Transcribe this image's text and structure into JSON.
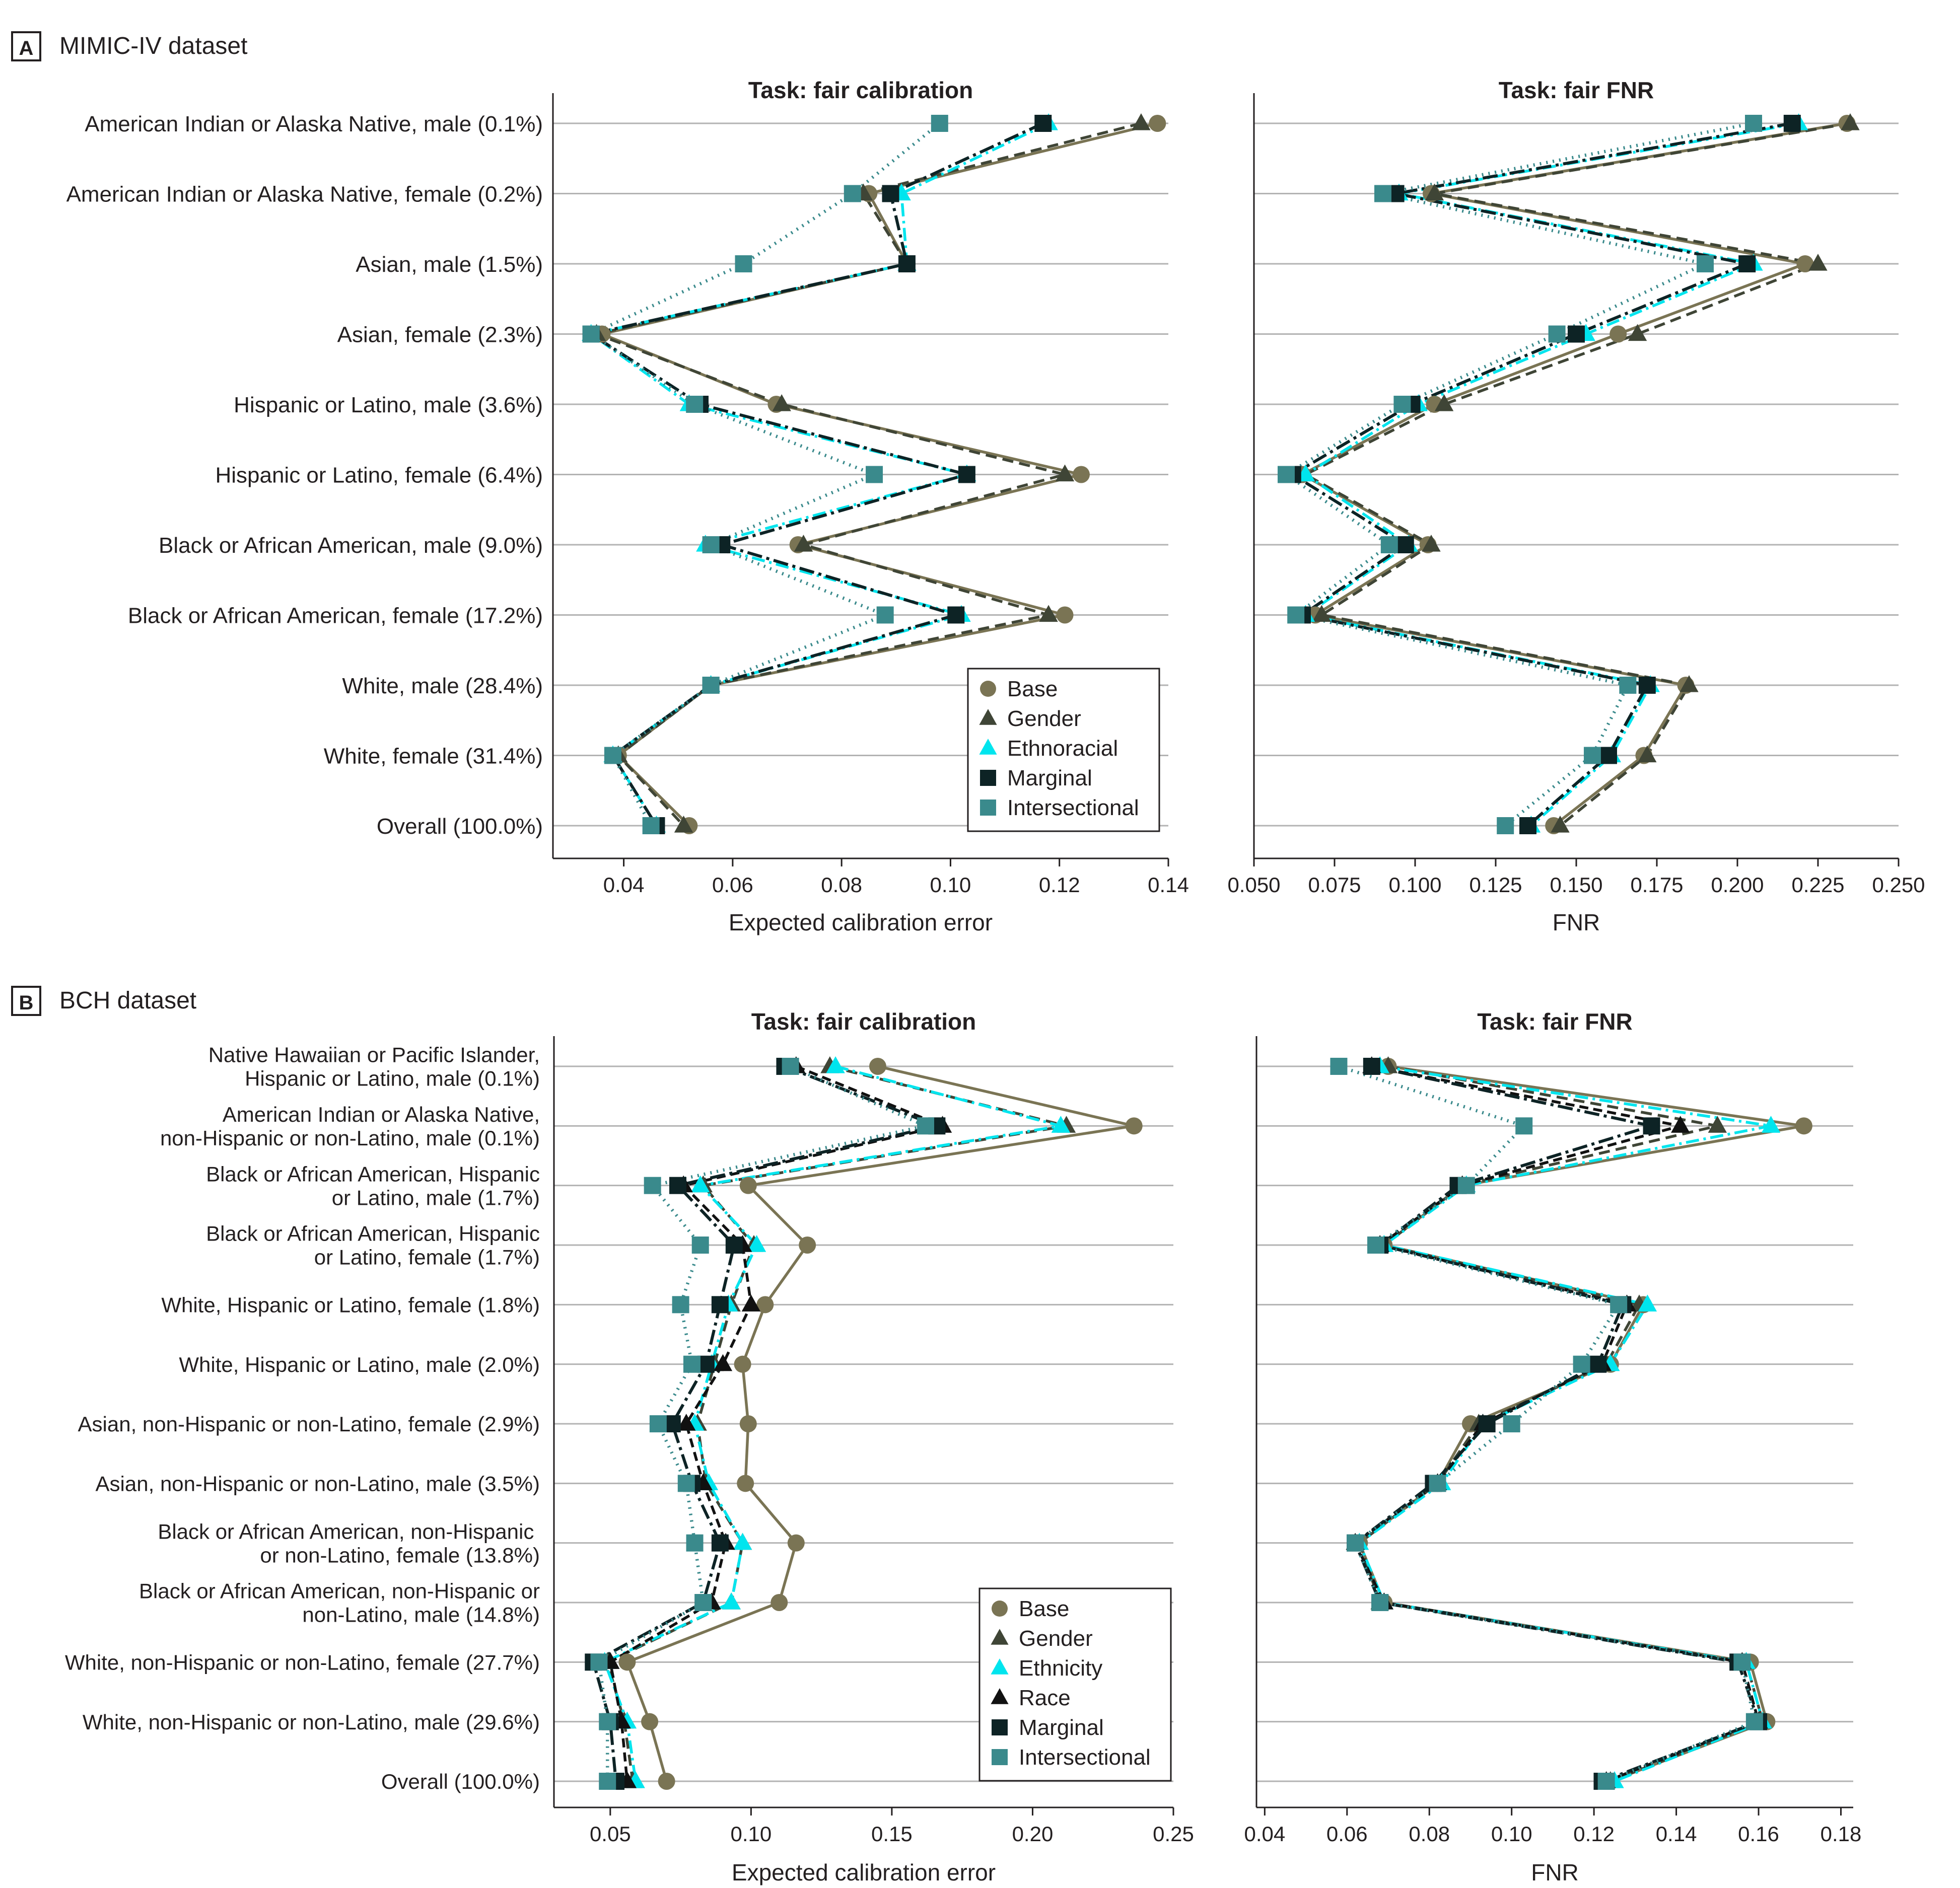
{
  "panels": [
    {
      "tag": "A",
      "title": "MIMIC-IV dataset"
    },
    {
      "tag": "B",
      "title": "BCH dataset"
    }
  ],
  "colors": {
    "Base": "#7a7454",
    "Gender": "#3f4536",
    "Ethnoracial": "#00e5ee",
    "Ethnicity": "#00e5ee",
    "Race": "#111111",
    "Marginal": "#0d2325",
    "Intersectional": "#3a8a8c",
    "error_bar": "#e8542a",
    "gridline": "#b3b3b3",
    "axis": "#231f20"
  },
  "chart_data": [
    {
      "id": "A-calibration",
      "type": "line",
      "title": "Task: fair calibration",
      "xlabel": "Expected calibration error",
      "ylabel": "",
      "xlim": [
        0.027,
        0.14
      ],
      "xticks": [
        0.04,
        0.06,
        0.08,
        0.1,
        0.12,
        0.14
      ],
      "xtick_labels": [
        "0.04",
        "0.06",
        "0.08",
        "0.10",
        "0.12",
        "0.14"
      ],
      "grid": true,
      "legend": "lower-right",
      "legend_entries": [
        "Base",
        "Gender",
        "Ethnoracial",
        "Marginal",
        "Intersectional"
      ],
      "categories": [
        [
          "American Indian or Alaska Native, male (0.1%)"
        ],
        [
          "American Indian or Alaska Native, female (0.2%)"
        ],
        [
          "Asian, male (1.5%)"
        ],
        [
          "Asian, female (2.3%)"
        ],
        [
          "Hispanic or Latino, male (3.6%)"
        ],
        [
          "Hispanic or Latino, female (6.4%)"
        ],
        [
          "Black or African American, male (9.0%)"
        ],
        [
          "Black or African American, female (17.2%)"
        ],
        [
          "White, male (28.4%)"
        ],
        [
          "White, female (31.4%)"
        ],
        [
          "Overall (100.0%)"
        ]
      ],
      "series": [
        {
          "name": "Base",
          "values": [
            0.138,
            0.085,
            0.092,
            0.036,
            0.068,
            0.124,
            0.072,
            0.121,
            0.056,
            0.039,
            0.052
          ]
        },
        {
          "name": "Gender",
          "values": [
            0.135,
            0.084,
            0.092,
            0.035,
            0.069,
            0.121,
            0.073,
            0.118,
            0.056,
            0.039,
            0.051
          ]
        },
        {
          "name": "Ethnoracial",
          "values": [
            0.118,
            0.091,
            0.092,
            0.034,
            0.052,
            0.103,
            0.055,
            0.102,
            0.056,
            0.038,
            0.046
          ]
        },
        {
          "name": "Marginal",
          "values": [
            0.117,
            0.089,
            0.092,
            0.034,
            0.054,
            0.103,
            0.058,
            0.101,
            0.056,
            0.038,
            0.046
          ]
        },
        {
          "name": "Intersectional",
          "values": [
            0.098,
            0.082,
            0.062,
            0.034,
            0.053,
            0.086,
            0.056,
            0.088,
            0.056,
            0.038,
            0.045
          ]
        }
      ]
    },
    {
      "id": "A-fnr",
      "type": "line",
      "title": "Task: fair FNR",
      "xlabel": "FNR",
      "ylabel": "",
      "xlim": [
        0.05,
        0.25
      ],
      "xticks": [
        0.05,
        0.075,
        0.1,
        0.125,
        0.15,
        0.175,
        0.2,
        0.225,
        0.25
      ],
      "xtick_labels": [
        "0.050",
        "0.075",
        "0.100",
        "0.125",
        "0.150",
        "0.175",
        "0.200",
        "0.225",
        "0.250"
      ],
      "grid": true,
      "categories": [
        [
          "American Indian or Alaska Native, male (0.1%)"
        ],
        [
          "American Indian or Alaska Native, female (0.2%)"
        ],
        [
          "Asian, male (1.5%)"
        ],
        [
          "Asian, female (2.3%)"
        ],
        [
          "Hispanic or Latino, male (3.6%)"
        ],
        [
          "Hispanic or Latino, female (6.4%)"
        ],
        [
          "Black or African American, male (9.0%)"
        ],
        [
          "Black or African American, female (17.2%)"
        ],
        [
          "White, male (28.4%)"
        ],
        [
          "White, female (31.4%)"
        ],
        [
          "Overall (100.0%)"
        ]
      ],
      "series": [
        {
          "name": "Base",
          "values": [
            0.234,
            0.105,
            0.221,
            0.163,
            0.106,
            0.065,
            0.104,
            0.069,
            0.184,
            0.171,
            0.143
          ]
        },
        {
          "name": "Gender",
          "values": [
            0.235,
            0.106,
            0.225,
            0.169,
            0.109,
            0.066,
            0.105,
            0.071,
            0.185,
            0.172,
            0.145
          ]
        },
        {
          "name": "Ethnoracial",
          "values": [
            0.219,
            0.095,
            0.205,
            0.153,
            0.101,
            0.066,
            0.098,
            0.066,
            0.173,
            0.161,
            0.136
          ]
        },
        {
          "name": "Marginal",
          "values": [
            0.217,
            0.094,
            0.203,
            0.15,
            0.099,
            0.062,
            0.097,
            0.065,
            0.172,
            0.16,
            0.135
          ]
        },
        {
          "name": "Intersectional",
          "values": [
            0.205,
            0.09,
            0.19,
            0.144,
            0.096,
            0.06,
            0.092,
            0.063,
            0.166,
            0.155,
            0.128
          ]
        }
      ]
    },
    {
      "id": "B-calibration",
      "type": "line",
      "title": "Task: fair calibration",
      "xlabel": "Expected calibration error",
      "ylabel": "",
      "xlim": [
        0.03,
        0.25
      ],
      "xticks": [
        0.05,
        0.1,
        0.15,
        0.2,
        0.25
      ],
      "xtick_labels": [
        "0.05",
        "0.10",
        "0.15",
        "0.20",
        "0.25"
      ],
      "grid": true,
      "legend": "lower-right",
      "legend_entries": [
        "Base",
        "Gender",
        "Ethnicity",
        "Race",
        "Marginal",
        "Intersectional"
      ],
      "categories": [
        [
          "Native Hawaiian or Pacific Islander,",
          "Hispanic or Latino, male (0.1%)"
        ],
        [
          "American Indian or Alaska Native,",
          "non-Hispanic or non-Latino, male (0.1%)"
        ],
        [
          "Black or African American, Hispanic",
          "or Latino, male (1.7%)"
        ],
        [
          "Black or African American, Hispanic",
          "or Latino, female (1.7%)"
        ],
        [
          "White, Hispanic or Latino, female (1.8%)"
        ],
        [
          "White, Hispanic or Latino, male (2.0%)"
        ],
        [
          "Asian, non-Hispanic or non-Latino, female (2.9%)"
        ],
        [
          "Asian, non-Hispanic or non-Latino, male (3.5%)"
        ],
        [
          "Black or African American, non-Hispanic ",
          "or non-Latino, female (13.8%)"
        ],
        [
          "Black or African American, non-Hispanic or",
          "non-Latino, male (14.8%)"
        ],
        [
          "White, non-Hispanic or non-Latino, female (27.7%)"
        ],
        [
          "White, non-Hispanic or non-Latino, male (29.6%)"
        ],
        [
          "Overall (100.0%)"
        ]
      ],
      "series": [
        {
          "name": "Base",
          "values": [
            0.145,
            0.236,
            0.099,
            0.12,
            0.105,
            0.097,
            0.099,
            0.098,
            0.116,
            0.11,
            0.056,
            0.064,
            0.07
          ]
        },
        {
          "name": "Gender",
          "values": [
            0.128,
            0.212,
            0.083,
            0.101,
            0.093,
            0.087,
            0.081,
            0.084,
            0.097,
            0.093,
            0.049,
            0.055,
            0.058
          ]
        },
        {
          "name": "Ethnicity",
          "values": [
            0.13,
            0.21,
            0.082,
            0.102,
            0.092,
            0.086,
            0.08,
            0.085,
            0.097,
            0.093,
            0.048,
            0.056,
            0.059
          ]
        },
        {
          "name": "Race",
          "values": [
            0.116,
            0.168,
            0.076,
            0.097,
            0.1,
            0.09,
            0.077,
            0.083,
            0.091,
            0.086,
            0.05,
            0.054,
            0.056
          ]
        },
        {
          "name": "Marginal",
          "values": [
            0.112,
            0.166,
            0.074,
            0.094,
            0.089,
            0.084,
            0.072,
            0.079,
            0.089,
            0.083,
            0.044,
            0.05,
            0.052
          ]
        },
        {
          "name": "Intersectional",
          "values": [
            0.114,
            0.162,
            0.065,
            0.082,
            0.075,
            0.079,
            0.067,
            0.077,
            0.08,
            0.083,
            0.046,
            0.049,
            0.049
          ]
        }
      ]
    },
    {
      "id": "B-fnr",
      "type": "line",
      "title": "Task: fair FNR",
      "xlabel": "FNR",
      "ylabel": "",
      "xlim": [
        0.038,
        0.183
      ],
      "xticks": [
        0.04,
        0.06,
        0.08,
        0.1,
        0.12,
        0.14,
        0.16,
        0.18
      ],
      "xtick_labels": [
        "0.04",
        "0.06",
        "0.08",
        "0.10",
        "0.12",
        "0.14",
        "0.16",
        "0.18"
      ],
      "grid": true,
      "categories": [
        [
          "Native Hawaiian or Pacific Islander,",
          "Hispanic or Latino, male (0.1%)"
        ],
        [
          "American Indian or Alaska Native,",
          "non-Hispanic or non-Latino, male (0.1%)"
        ],
        [
          "Black or African American, Hispanic",
          "or Latino, male (1.7%)"
        ],
        [
          "Black or African American, Hispanic",
          "or Latino, female (1.7%)"
        ],
        [
          "White, Hispanic or Latino, female (1.8%)"
        ],
        [
          "White, Hispanic or Latino, male (2.0%)"
        ],
        [
          "Asian, non-Hispanic or non-Latino, female (2.9%)"
        ],
        [
          "Asian, non-Hispanic or non-Latino, male (3.5%)"
        ],
        [
          "Black or African American, non-Hispanic ",
          "or non-Latino, female (13.8%)"
        ],
        [
          "Black or African American, non-Hispanic or",
          "non-Latino, male (14.8%)"
        ],
        [
          "White, non-Hispanic or non-Latino, female (27.7%)"
        ],
        [
          "White, non-Hispanic or non-Latino, male (29.6%)"
        ],
        [
          "Overall (100.0%)"
        ]
      ],
      "series": [
        {
          "name": "Base",
          "values": [
            0.07,
            0.171,
            0.088,
            0.069,
            0.132,
            0.124,
            0.09,
            0.082,
            0.063,
            0.069,
            0.158,
            0.162,
            0.124
          ]
        },
        {
          "name": "Gender",
          "values": [
            0.07,
            0.15,
            0.088,
            0.069,
            0.131,
            0.123,
            0.092,
            0.082,
            0.063,
            0.068,
            0.157,
            0.161,
            0.124
          ]
        },
        {
          "name": "Ethnicity",
          "values": [
            0.068,
            0.163,
            0.089,
            0.069,
            0.133,
            0.124,
            0.093,
            0.083,
            0.063,
            0.069,
            0.157,
            0.161,
            0.125
          ]
        },
        {
          "name": "Race",
          "values": [
            0.066,
            0.141,
            0.088,
            0.068,
            0.128,
            0.122,
            0.093,
            0.082,
            0.062,
            0.069,
            0.156,
            0.16,
            0.123
          ]
        },
        {
          "name": "Marginal",
          "values": [
            0.066,
            0.134,
            0.087,
            0.068,
            0.127,
            0.121,
            0.094,
            0.081,
            0.062,
            0.068,
            0.155,
            0.16,
            0.122
          ]
        },
        {
          "name": "Intersectional",
          "values": [
            0.058,
            0.103,
            0.089,
            0.067,
            0.126,
            0.117,
            0.1,
            0.082,
            0.062,
            0.068,
            0.156,
            0.159,
            0.123
          ]
        }
      ]
    }
  ]
}
